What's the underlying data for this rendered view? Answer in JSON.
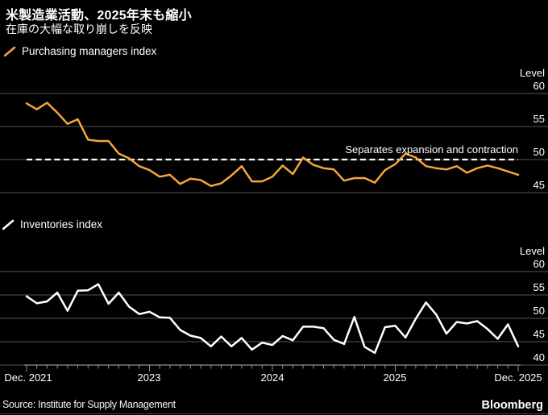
{
  "header": {
    "title": "米製造業活動、2025年末も縮小",
    "subtitle": "在庫の大幅な取り崩しを反映"
  },
  "footer": {
    "source": "Source: Institute for Supply Management",
    "brand": "Bloomberg"
  },
  "colors": {
    "background": "#000000",
    "pmi_line": "#F5A53D",
    "inventories_line": "#FFFFFF",
    "gridline": "#545454",
    "axis": "#8F8F8F",
    "reference_line": "#FFFFFF",
    "text": "#FFFFFF"
  },
  "x_axis": {
    "labels": [
      "Dec. 2021",
      "2023",
      "2024",
      "2025",
      "Dec. 2025"
    ],
    "start": "Dec. 2021",
    "end": "Dec. 2025",
    "frequency": "monthly",
    "n_months": 49,
    "major_tick_months": [
      0,
      12,
      24,
      36,
      48
    ]
  },
  "chart_data": [
    {
      "type": "line",
      "legend": "Purchasing managers index",
      "ylabel": "Level",
      "yticks": [
        60,
        55,
        50,
        45
      ],
      "ylim": [
        44,
        61
      ],
      "color": "#F5A53D",
      "grid": true,
      "reference_line": {
        "value": 50,
        "style": "dashed",
        "label": "Separates expansion and contraction"
      },
      "x_start": "Dec. 2021",
      "x_end": "Dec. 2025",
      "values": [
        58.5,
        57.6,
        58.6,
        57.1,
        55.4,
        56.1,
        53.0,
        52.8,
        52.8,
        50.9,
        50.2,
        49.0,
        48.4,
        47.4,
        47.7,
        46.3,
        47.1,
        46.9,
        46.0,
        46.4,
        47.6,
        49.0,
        46.7,
        46.7,
        47.4,
        49.1,
        47.8,
        50.3,
        49.2,
        48.7,
        48.5,
        46.8,
        47.2,
        47.2,
        46.5,
        48.4,
        49.3,
        50.9,
        50.3,
        49.0,
        48.7,
        48.5,
        49.0,
        48.0,
        48.7,
        49.1,
        48.7,
        48.2,
        47.7
      ]
    },
    {
      "type": "line",
      "legend": "Inventories index",
      "ylabel": "Level",
      "yticks": [
        60,
        55,
        50,
        45,
        40
      ],
      "ylim": [
        39,
        61
      ],
      "color": "#FFFFFF",
      "grid": true,
      "x_start": "Dec. 2021",
      "x_end": "Dec. 2025",
      "values": [
        54.7,
        53.2,
        53.6,
        55.5,
        51.6,
        55.9,
        56.0,
        57.3,
        53.1,
        55.5,
        52.5,
        50.9,
        51.4,
        50.2,
        50.1,
        47.5,
        46.3,
        45.8,
        44.0,
        46.1,
        44.0,
        45.8,
        43.3,
        44.8,
        44.3,
        46.2,
        45.3,
        48.2,
        48.2,
        47.9,
        45.4,
        44.5,
        50.3,
        43.9,
        42.6,
        48.1,
        48.4,
        45.9,
        49.9,
        53.4,
        50.8,
        46.7,
        49.2,
        48.9,
        49.4,
        47.7,
        45.6,
        48.7,
        44.0
      ]
    }
  ]
}
